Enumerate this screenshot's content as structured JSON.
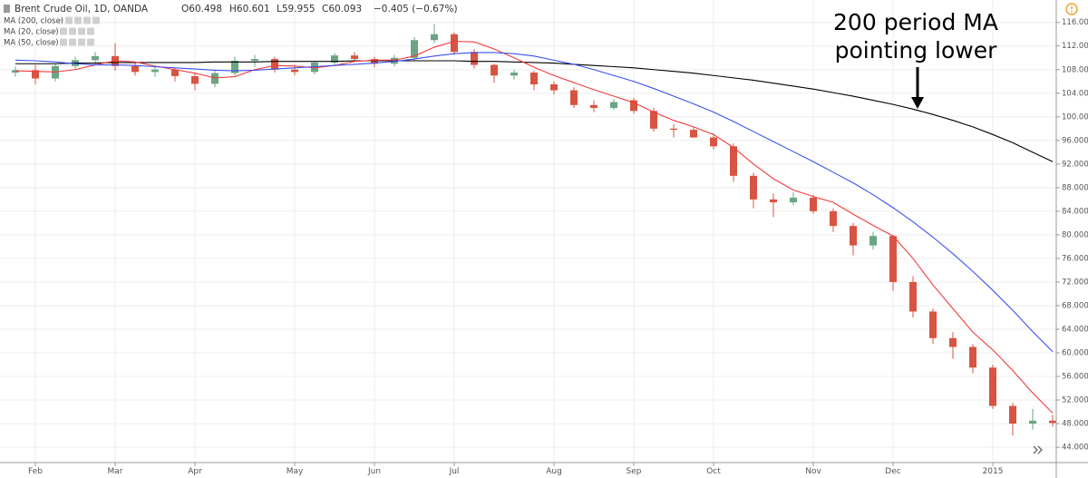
{
  "chart_data": {
    "type": "candlestick",
    "title": "Brent Crude Oil, 1D, OANDA",
    "ohlc_readout": [
      "O60.498",
      "H60.601",
      "L59.955",
      "C60.093",
      "−0.405 (−0.67%)"
    ],
    "annotation": [
      "200 period MA",
      "pointing lower"
    ],
    "categories": [
      null,
      "Feb",
      null,
      null,
      null,
      "Mar",
      null,
      null,
      null,
      "Apr",
      null,
      null,
      null,
      null,
      "May",
      null,
      null,
      null,
      "Jun",
      null,
      null,
      null,
      "Jul",
      null,
      null,
      null,
      null,
      "Aug",
      null,
      null,
      null,
      "Sep",
      null,
      null,
      null,
      "Oct",
      null,
      null,
      null,
      null,
      "Nov",
      null,
      null,
      null,
      "Dec",
      null,
      null,
      null,
      null,
      "2015",
      null,
      null,
      null
    ],
    "up_color": "#6ba583",
    "down_color": "#d75442",
    "open": [
      107.5,
      107.9,
      106.5,
      108.6,
      109.6,
      110.3,
      108.6,
      107.6,
      108.0,
      106.9,
      105.6,
      107.4,
      109.5,
      109.8,
      108.0,
      107.6,
      109.2,
      110.4,
      109.8,
      109.0,
      110.0,
      113.0,
      114.0,
      111.0,
      108.8,
      107.0,
      107.5,
      105.5,
      104.5,
      102.0,
      101.5,
      102.8,
      101.0,
      98.0,
      97.8,
      96.5,
      95.0,
      90.0,
      86.0,
      85.5,
      86.3,
      84.0,
      81.5,
      78.2,
      79.8,
      72.0,
      67.0,
      62.5,
      61.0,
      57.5,
      51.0,
      48.0,
      48.5
    ],
    "high": [
      108.5,
      108.8,
      109.0,
      110.2,
      111.0,
      112.5,
      109.2,
      108.5,
      108.3,
      107.5,
      108.0,
      110.2,
      110.5,
      110.2,
      108.8,
      109.5,
      110.8,
      111.0,
      110.2,
      110.5,
      113.5,
      115.7,
      114.3,
      111.5,
      109.0,
      108.0,
      107.8,
      106.0,
      105.0,
      102.8,
      103.0,
      103.2,
      101.5,
      98.8,
      98.2,
      97.2,
      95.5,
      90.5,
      87.0,
      87.2,
      86.8,
      84.5,
      82.0,
      80.5,
      80.0,
      73.0,
      67.5,
      63.5,
      61.5,
      58.0,
      51.5,
      50.5,
      49.5
    ],
    "low": [
      106.8,
      105.5,
      106.0,
      108.0,
      108.8,
      107.8,
      107.0,
      106.8,
      106.0,
      104.5,
      105.0,
      107.0,
      108.5,
      107.5,
      107.0,
      107.2,
      108.8,
      109.5,
      108.4,
      108.5,
      109.5,
      112.5,
      110.5,
      108.2,
      105.8,
      106.3,
      104.5,
      103.8,
      101.5,
      100.8,
      101.2,
      100.5,
      97.5,
      96.5,
      96.5,
      94.5,
      89.0,
      84.5,
      83.0,
      85.0,
      83.5,
      80.5,
      76.5,
      77.5,
      70.5,
      66.0,
      61.5,
      59.0,
      56.5,
      50.5,
      46.0,
      47.0,
      47.5
    ],
    "close": [
      107.9,
      106.5,
      108.6,
      109.6,
      110.3,
      108.6,
      107.6,
      108.0,
      106.9,
      105.6,
      107.4,
      109.5,
      109.8,
      108.0,
      107.6,
      109.2,
      110.4,
      109.8,
      109.0,
      110.0,
      113.0,
      114.0,
      111.0,
      108.8,
      107.0,
      107.5,
      105.5,
      104.5,
      102.0,
      101.5,
      102.5,
      101.0,
      98.0,
      97.8,
      96.5,
      95.0,
      90.0,
      86.0,
      85.5,
      86.3,
      84.0,
      81.5,
      78.2,
      79.8,
      72.0,
      67.0,
      62.5,
      61.0,
      57.5,
      51.0,
      48.0,
      48.5,
      48.1
    ],
    "series": [
      {
        "name": "MA (200, close)",
        "color": "#000000",
        "values": [
          109.0,
          109.0,
          109.0,
          109.1,
          109.1,
          109.2,
          109.2,
          109.2,
          109.2,
          109.2,
          109.3,
          109.3,
          109.3,
          109.4,
          109.4,
          109.4,
          109.4,
          109.5,
          109.5,
          109.5,
          109.5,
          109.5,
          109.5,
          109.4,
          109.4,
          109.3,
          109.2,
          109.1,
          108.9,
          108.7,
          108.5,
          108.3,
          108.0,
          107.7,
          107.4,
          107.0,
          106.6,
          106.2,
          105.7,
          105.2,
          104.7,
          104.1,
          103.5,
          102.8,
          102.1,
          101.3,
          100.4,
          99.4,
          98.3,
          97.0,
          95.6,
          94.0,
          92.4
        ]
      },
      {
        "name": "MA (20, close)",
        "color": "#f23b3b",
        "values": [
          107.8,
          107.7,
          107.6,
          108.0,
          108.8,
          109.5,
          109.3,
          108.6,
          108.0,
          107.4,
          106.6,
          106.8,
          108.0,
          108.7,
          108.6,
          108.3,
          108.7,
          109.4,
          109.6,
          109.6,
          110.3,
          111.8,
          112.8,
          112.7,
          111.5,
          110.0,
          108.4,
          107.0,
          105.8,
          104.6,
          103.5,
          102.4,
          100.8,
          99.4,
          98.3,
          97.0,
          94.8,
          92.0,
          89.5,
          87.6,
          86.5,
          85.5,
          83.5,
          81.6,
          79.8,
          76.0,
          71.5,
          67.5,
          63.5,
          60.5,
          57.0,
          53.2,
          49.8
        ]
      },
      {
        "name": "MA (50, close)",
        "color": "#3b4ff2",
        "values": [
          109.6,
          109.5,
          109.3,
          109.0,
          108.8,
          108.8,
          108.7,
          108.5,
          108.3,
          108.1,
          107.9,
          107.8,
          107.9,
          108.1,
          108.3,
          108.5,
          108.7,
          108.9,
          109.1,
          109.4,
          109.8,
          110.3,
          110.7,
          110.9,
          110.9,
          110.7,
          110.3,
          109.6,
          108.9,
          108.0,
          107.0,
          106.0,
          104.8,
          103.5,
          102.2,
          100.8,
          99.2,
          97.5,
          95.8,
          94.1,
          92.4,
          90.6,
          88.8,
          86.8,
          84.6,
          82.2,
          79.6,
          76.8,
          73.8,
          70.6,
          67.2,
          63.6,
          60.2
        ]
      }
    ],
    "ylim": [
      41.4,
      119.8
    ],
    "yticks": [
      {
        "value": 44,
        "label": "44.000"
      },
      {
        "value": 48,
        "label": "48.000"
      },
      {
        "value": 52,
        "label": "52.000"
      },
      {
        "value": 56,
        "label": "56.000"
      },
      {
        "value": 60,
        "label": "60.000"
      },
      {
        "value": 64,
        "label": "64.000"
      },
      {
        "value": 68,
        "label": "68.000"
      },
      {
        "value": 72,
        "label": "72.000"
      },
      {
        "value": 76,
        "label": "76.000"
      },
      {
        "value": 80,
        "label": "80.000"
      },
      {
        "value": 84,
        "label": "84.000"
      },
      {
        "value": 88,
        "label": "88.000"
      },
      {
        "value": 92,
        "label": "92.000"
      },
      {
        "value": 96,
        "label": "96.000"
      },
      {
        "value": 100,
        "label": "100.000"
      },
      {
        "value": 104,
        "label": "104.000"
      },
      {
        "value": 108,
        "label": "108.000"
      },
      {
        "value": 112,
        "label": "112.000"
      },
      {
        "value": 116,
        "label": "116.000"
      }
    ],
    "grid": true
  }
}
